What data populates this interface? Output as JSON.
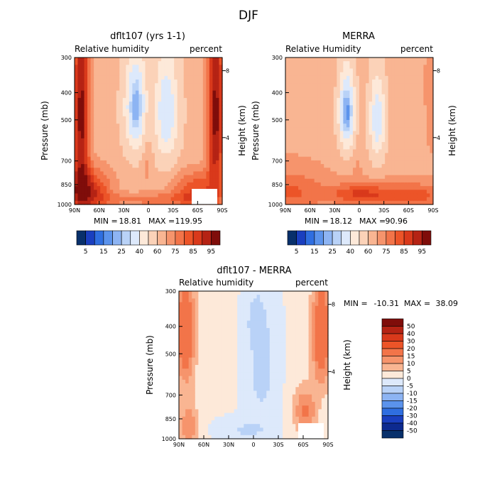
{
  "figure": {
    "title": "DJF"
  },
  "chart_data": [
    {
      "type": "heatmap",
      "id": "model",
      "title": "dflt107 (yrs 1-1)",
      "subtitle_left": "Relative humidity",
      "subtitle_right": "percent",
      "xlabel": "",
      "ylabel": "Pressure (mb)",
      "y2label": "Height (km)",
      "x_ticks": [
        "90N",
        "60N",
        "30N",
        "0",
        "30S",
        "60S",
        "90S"
      ],
      "x_range": [
        90,
        -90
      ],
      "y_ticks": [
        "300",
        "400",
        "500",
        "700",
        "850",
        "1000"
      ],
      "y_tick_values": [
        300,
        400,
        500,
        700,
        850,
        1000
      ],
      "y_range": [
        300,
        1000
      ],
      "y2_ticks": [
        "8",
        "4"
      ],
      "y2_tick_values": [
        8,
        4
      ],
      "stats_min_label": "MIN =",
      "stats_min": "18.81",
      "stats_max_label": "MAX =",
      "stats_max": "119.95",
      "colorbar": {
        "orientation": "horizontal",
        "labels": [
          "5",
          "15",
          "25",
          "40",
          "60",
          "75",
          "85",
          "95"
        ],
        "colors": [
          "#08306b",
          "#1a3fbf",
          "#2f6ee0",
          "#5b93ec",
          "#8db4f3",
          "#b9d2f7",
          "#dde9fb",
          "#fde9d9",
          "#fbd2b8",
          "#f9b592",
          "#f6946c",
          "#f27449",
          "#ec5428",
          "#d9391b",
          "#b52314",
          "#7f0d0a"
        ]
      }
    },
    {
      "type": "heatmap",
      "id": "merra",
      "title": "MERRA",
      "subtitle_left": "Relative Humidity",
      "subtitle_right": "percent",
      "xlabel": "",
      "ylabel": "Pressure (mb)",
      "y2label": "Height (km)",
      "x_ticks": [
        "90N",
        "60N",
        "30N",
        "0",
        "30S",
        "60S",
        "90S"
      ],
      "x_range": [
        90,
        -90
      ],
      "y_ticks": [
        "300",
        "400",
        "500",
        "700",
        "850",
        "1000"
      ],
      "y_tick_values": [
        300,
        400,
        500,
        700,
        850,
        1000
      ],
      "y_range": [
        300,
        1000
      ],
      "y2_ticks": [
        "8",
        "4"
      ],
      "y2_tick_values": [
        8,
        4
      ],
      "stats_min_label": "MIN =",
      "stats_min": "18.12",
      "stats_max_label": "MAX =",
      "stats_max": "90.96",
      "colorbar": {
        "orientation": "horizontal",
        "labels": [
          "5",
          "15",
          "25",
          "40",
          "60",
          "75",
          "85",
          "95"
        ],
        "colors": [
          "#08306b",
          "#1a3fbf",
          "#2f6ee0",
          "#5b93ec",
          "#8db4f3",
          "#b9d2f7",
          "#dde9fb",
          "#fde9d9",
          "#fbd2b8",
          "#f9b592",
          "#f6946c",
          "#f27449",
          "#ec5428",
          "#d9391b",
          "#b52314",
          "#7f0d0a"
        ]
      }
    },
    {
      "type": "heatmap",
      "id": "diff",
      "title": "dflt107 - MERRA",
      "subtitle_left": "Relative humidity",
      "subtitle_right": "percent",
      "xlabel": "",
      "ylabel": "Pressure (mb)",
      "y2label": "Height (km)",
      "x_ticks": [
        "90N",
        "60N",
        "30N",
        "0",
        "30S",
        "60S",
        "90S"
      ],
      "x_range": [
        90,
        -90
      ],
      "y_ticks": [
        "300",
        "400",
        "500",
        "700",
        "850",
        "1000"
      ],
      "y_tick_values": [
        300,
        400,
        500,
        700,
        850,
        1000
      ],
      "y_range": [
        300,
        1000
      ],
      "y2_ticks": [
        "8",
        "4"
      ],
      "y2_tick_values": [
        8,
        4
      ],
      "stats_min_label": "MIN =",
      "stats_min": "-10.31",
      "stats_max_label": "MAX =",
      "stats_max": "38.09",
      "colorbar": {
        "orientation": "vertical",
        "labels": [
          "50",
          "40",
          "30",
          "20",
          "15",
          "10",
          "5",
          "0",
          "-5",
          "-10",
          "-15",
          "-20",
          "-30",
          "-40",
          "-50"
        ],
        "colors": [
          "#7f0d0a",
          "#b52314",
          "#d9391b",
          "#ec5428",
          "#f27449",
          "#f6946c",
          "#f9b592",
          "#fde9d9",
          "#dde9fb",
          "#b9d2f7",
          "#8db4f3",
          "#5b93ec",
          "#2f6ee0",
          "#1a3fbf",
          "#0d2a8f",
          "#08306b"
        ]
      }
    }
  ]
}
